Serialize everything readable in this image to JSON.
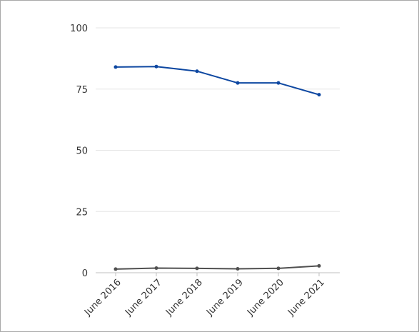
{
  "chart_data": {
    "type": "line",
    "title": "",
    "xlabel": "",
    "ylabel": "",
    "categories": [
      "June 2016",
      "June 2017",
      "June 2018",
      "June 2019",
      "June 2020",
      "June 2021"
    ],
    "ylim": [
      0,
      100
    ],
    "yticks": [
      "0",
      "25",
      "50",
      "75",
      "100"
    ],
    "grid": true,
    "legend": "none",
    "series": [
      {
        "color": "#0d47a1",
        "values": [
          84.0,
          84.2,
          82.3,
          77.5,
          77.5,
          72.7
        ]
      },
      {
        "color": "#505050",
        "values": [
          1.5,
          1.9,
          1.8,
          1.6,
          1.8,
          2.8
        ]
      }
    ]
  }
}
